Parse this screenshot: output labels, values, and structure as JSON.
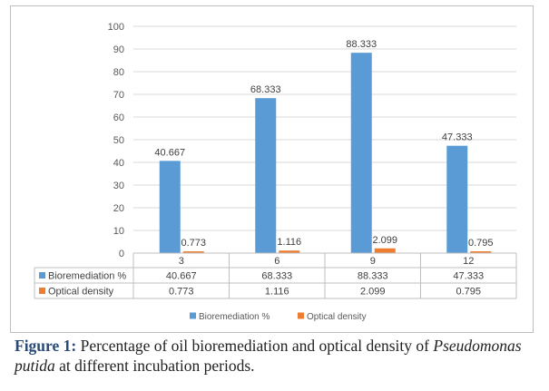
{
  "chart_data": {
    "type": "bar",
    "categories": [
      "3",
      "6",
      "9",
      "12"
    ],
    "series": [
      {
        "name": "Bioremediation %",
        "values": [
          40.667,
          68.333,
          88.333,
          47.333
        ],
        "labels": [
          "40.667",
          "68.333",
          "88.333",
          "47.333"
        ],
        "color": "#5b9bd5"
      },
      {
        "name": "Optical density",
        "values": [
          0.773,
          1.116,
          2.099,
          0.795
        ],
        "labels": [
          "0.773",
          "1.116",
          "2.099",
          "0.795"
        ],
        "color": "#ed7d31"
      }
    ],
    "ylim": [
      0,
      100
    ],
    "yticks": [
      "0",
      "10",
      "20",
      "30",
      "40",
      "50",
      "60",
      "70",
      "80",
      "90",
      "100"
    ],
    "grid": true,
    "legend": "bottom",
    "data_table": true
  },
  "caption": {
    "label": "Figure 1:",
    "text_before": " Percentage of oil bioremediation and optical density of ",
    "species": "Pseudomonas putida",
    "text_after": " at different incubation periods."
  }
}
